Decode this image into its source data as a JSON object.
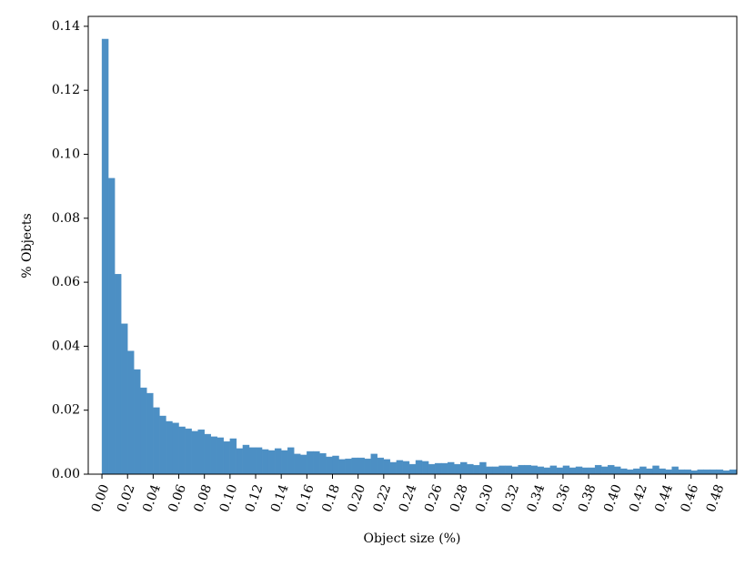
{
  "chart_data": {
    "type": "histogram",
    "x_label": "Object size (%)",
    "y_label": "% Objects",
    "color": "#4c8fc4",
    "bins": [
      0,
      0.005,
      0.01,
      0.015,
      0.02,
      0.025,
      0.03,
      0.035,
      0.04,
      0.045,
      0.05,
      0.055,
      0.06,
      0.065,
      0.07,
      0.075,
      0.08,
      0.085,
      0.09,
      0.095,
      0.1,
      0.105,
      0.11,
      0.115,
      0.12,
      0.125,
      0.13,
      0.135,
      0.14,
      0.145,
      0.15,
      0.155,
      0.16,
      0.165,
      0.17,
      0.175,
      0.18,
      0.185,
      0.19,
      0.195,
      0.2,
      0.205,
      0.21,
      0.215,
      0.22,
      0.225,
      0.23,
      0.235,
      0.24,
      0.245,
      0.25,
      0.255,
      0.26,
      0.265,
      0.27,
      0.275,
      0.28,
      0.285,
      0.29,
      0.295,
      0.3,
      0.305,
      0.31,
      0.315,
      0.32,
      0.325,
      0.33,
      0.335,
      0.34,
      0.345,
      0.35,
      0.355,
      0.36,
      0.365,
      0.37,
      0.375,
      0.38,
      0.385,
      0.39,
      0.395,
      0.4,
      0.405,
      0.41,
      0.415,
      0.42,
      0.425,
      0.43,
      0.435,
      0.44,
      0.445,
      0.45,
      0.455,
      0.46,
      0.465,
      0.47,
      0.475,
      0.48,
      0.485,
      0.49,
      0.495,
      0.5
    ],
    "counts": [
      0.136,
      0.0925,
      0.0625,
      0.047,
      0.0385,
      0.0327,
      0.027,
      0.0253,
      0.0208,
      0.0182,
      0.0165,
      0.016,
      0.0148,
      0.0142,
      0.0134,
      0.0139,
      0.0125,
      0.0117,
      0.0114,
      0.0102,
      0.0111,
      0.008,
      0.0091,
      0.0083,
      0.0083,
      0.0077,
      0.0074,
      0.008,
      0.0074,
      0.0083,
      0.0063,
      0.006,
      0.0071,
      0.0071,
      0.0065,
      0.0054,
      0.0057,
      0.0046,
      0.0048,
      0.0051,
      0.0051,
      0.0048,
      0.0063,
      0.0051,
      0.0046,
      0.0037,
      0.0043,
      0.004,
      0.0031,
      0.0043,
      0.004,
      0.0031,
      0.0034,
      0.0034,
      0.0037,
      0.0031,
      0.0037,
      0.0031,
      0.0028,
      0.0037,
      0.0023,
      0.0023,
      0.0026,
      0.0026,
      0.0023,
      0.0028,
      0.0028,
      0.0026,
      0.0023,
      0.002,
      0.0026,
      0.002,
      0.0026,
      0.002,
      0.0023,
      0.002,
      0.002,
      0.0028,
      0.0023,
      0.0028,
      0.0023,
      0.0017,
      0.0014,
      0.0017,
      0.0023,
      0.0017,
      0.0026,
      0.0017,
      0.0014,
      0.0023,
      0.0014,
      0.0014,
      0.0011,
      0.0014,
      0.0014,
      0.0014,
      0.0014,
      0.0011,
      0.0014,
      0.0014
    ],
    "xlim": [
      -0.0107,
      0.4957
    ],
    "ylim": [
      0,
      0.1431
    ],
    "xticks": [
      {
        "value": 0,
        "label": "0.00"
      },
      {
        "value": 0.02,
        "label": "0.02"
      },
      {
        "value": 0.04,
        "label": "0.04"
      },
      {
        "value": 0.06,
        "label": "0.06"
      },
      {
        "value": 0.08,
        "label": "0.08"
      },
      {
        "value": 0.1,
        "label": "0.10"
      },
      {
        "value": 0.12,
        "label": "0.12"
      },
      {
        "value": 0.14,
        "label": "0.14"
      },
      {
        "value": 0.16,
        "label": "0.16"
      },
      {
        "value": 0.18,
        "label": "0.18"
      },
      {
        "value": 0.2,
        "label": "0.20"
      },
      {
        "value": 0.22,
        "label": "0.22"
      },
      {
        "value": 0.24,
        "label": "0.24"
      },
      {
        "value": 0.26,
        "label": "0.26"
      },
      {
        "value": 0.28,
        "label": "0.28"
      },
      {
        "value": 0.3,
        "label": "0.30"
      },
      {
        "value": 0.32,
        "label": "0.32"
      },
      {
        "value": 0.34,
        "label": "0.34"
      },
      {
        "value": 0.36,
        "label": "0.36"
      },
      {
        "value": 0.38,
        "label": "0.38"
      },
      {
        "value": 0.4,
        "label": "0.40"
      },
      {
        "value": 0.42,
        "label": "0.42"
      },
      {
        "value": 0.44,
        "label": "0.44"
      },
      {
        "value": 0.46,
        "label": "0.46"
      },
      {
        "value": 0.48,
        "label": "0.48"
      }
    ],
    "yticks": [
      {
        "value": 0,
        "label": "0.00"
      },
      {
        "value": 0.02,
        "label": "0.02"
      },
      {
        "value": 0.04,
        "label": "0.04"
      },
      {
        "value": 0.06,
        "label": "0.06"
      },
      {
        "value": 0.08,
        "label": "0.08"
      },
      {
        "value": 0.1,
        "label": "0.10"
      },
      {
        "value": 0.12,
        "label": "0.12"
      },
      {
        "value": 0.14,
        "label": "0.14"
      }
    ]
  }
}
